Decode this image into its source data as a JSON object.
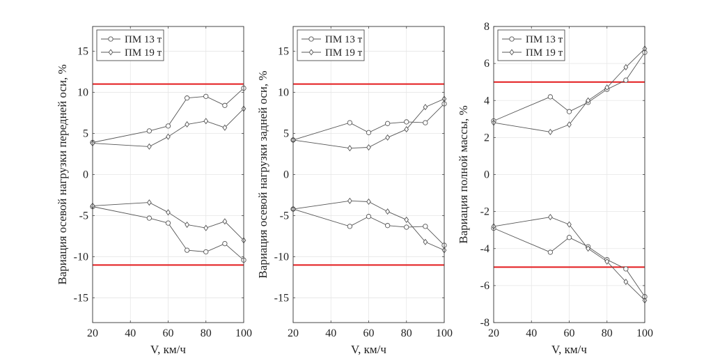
{
  "chart_data": [
    {
      "type": "line",
      "xlabel": "V, км/ч",
      "ylabel": "Вариация осевой нагрузки передней оси, %",
      "xlim": [
        20,
        100
      ],
      "ylim": [
        -18,
        18
      ],
      "xticks": [
        "20",
        "40",
        "60",
        "80",
        "100"
      ],
      "yticks": [
        "-15",
        "-10",
        "-5",
        "0",
        "5",
        "10",
        "15"
      ],
      "grid": true,
      "legend_position": "top-left",
      "legend": [
        "ПМ 13 т",
        "ПМ 19 т"
      ],
      "limit_lines": [
        11,
        -11
      ],
      "limit_color": "#e31a1c",
      "series": [
        {
          "name": "ПМ 13 т",
          "marker": "circle",
          "x": [
            20,
            50,
            60,
            70,
            80,
            90,
            100
          ],
          "upper": [
            3.9,
            5.3,
            5.9,
            9.3,
            9.5,
            8.4,
            10.5
          ],
          "lower": [
            -3.9,
            -5.3,
            -5.9,
            -9.2,
            -9.4,
            -8.4,
            -10.4
          ]
        },
        {
          "name": "ПМ 19 т",
          "marker": "diamond",
          "x": [
            20,
            50,
            60,
            70,
            80,
            90,
            100
          ],
          "upper": [
            3.8,
            3.4,
            4.6,
            6.1,
            6.5,
            5.7,
            8.0
          ],
          "lower": [
            -3.8,
            -3.4,
            -4.6,
            -6.1,
            -6.5,
            -5.7,
            -8.0
          ]
        }
      ]
    },
    {
      "type": "line",
      "xlabel": "V, км/ч",
      "ylabel": "Вариация осевой нагрузки задней оси, %",
      "xlim": [
        20,
        100
      ],
      "ylim": [
        -18,
        18
      ],
      "xticks": [
        "20",
        "40",
        "60",
        "80",
        "100"
      ],
      "yticks": [
        "-15",
        "-10",
        "-5",
        "0",
        "5",
        "10",
        "15"
      ],
      "grid": true,
      "legend_position": "top-left",
      "legend": [
        "ПМ 13 т",
        "ПМ 19 т"
      ],
      "limit_lines": [
        11,
        -11
      ],
      "limit_color": "#e31a1c",
      "series": [
        {
          "name": "ПМ 13 т",
          "marker": "circle",
          "x": [
            20,
            50,
            60,
            70,
            80,
            90,
            100
          ],
          "upper": [
            4.2,
            6.3,
            5.1,
            6.2,
            6.4,
            6.3,
            8.6
          ],
          "lower": [
            -4.2,
            -6.3,
            -5.1,
            -6.2,
            -6.4,
            -6.3,
            -8.6
          ]
        },
        {
          "name": "ПМ 19 т",
          "marker": "diamond",
          "x": [
            20,
            50,
            60,
            70,
            80,
            90,
            100
          ],
          "upper": [
            4.2,
            3.2,
            3.3,
            4.5,
            5.5,
            8.2,
            9.2
          ],
          "lower": [
            -4.2,
            -3.2,
            -3.3,
            -4.5,
            -5.5,
            -8.2,
            -9.2
          ]
        }
      ]
    },
    {
      "type": "line",
      "xlabel": "V, км/ч",
      "ylabel": "Вариация полной массы, %",
      "xlim": [
        20,
        100
      ],
      "ylim": [
        -8,
        8
      ],
      "xticks": [
        "20",
        "40",
        "60",
        "80",
        "100"
      ],
      "yticks": [
        "-8",
        "-6",
        "-4",
        "-2",
        "0",
        "2",
        "4",
        "6",
        "8"
      ],
      "grid": true,
      "legend_position": "top-left",
      "legend": [
        "ПМ 13 т",
        "ПМ 19 т"
      ],
      "limit_lines": [
        5,
        -5
      ],
      "limit_color": "#e31a1c",
      "series": [
        {
          "name": "ПМ 13 т",
          "marker": "circle",
          "x": [
            20,
            50,
            60,
            70,
            80,
            90,
            100
          ],
          "upper": [
            2.9,
            4.2,
            3.4,
            3.9,
            4.6,
            5.1,
            6.6
          ],
          "lower": [
            -2.9,
            -4.2,
            -3.4,
            -3.9,
            -4.6,
            -5.1,
            -6.6
          ]
        },
        {
          "name": "ПМ 19 т",
          "marker": "diamond",
          "x": [
            20,
            50,
            60,
            70,
            80,
            90,
            100
          ],
          "upper": [
            2.8,
            2.3,
            2.7,
            4.0,
            4.7,
            5.8,
            6.8
          ],
          "lower": [
            -2.8,
            -2.3,
            -2.7,
            -4.0,
            -4.7,
            -5.8,
            -6.8
          ]
        }
      ]
    }
  ]
}
